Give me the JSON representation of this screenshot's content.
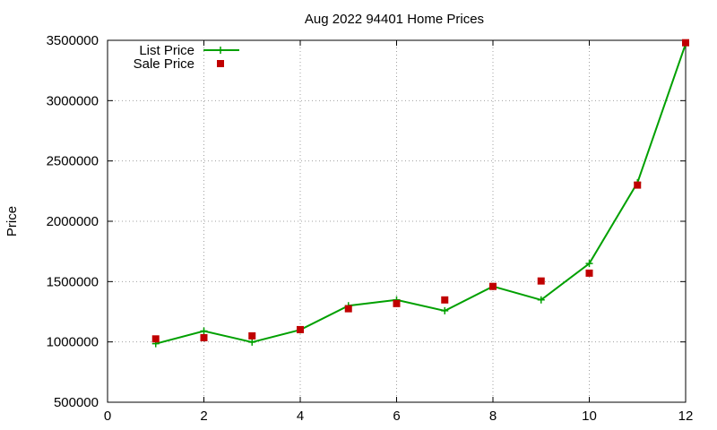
{
  "chart_data": {
    "type": "line",
    "title": "Aug 2022 94401 Home Prices",
    "xlabel": "",
    "ylabel": "Price",
    "xlim": [
      0,
      12
    ],
    "ylim": [
      500000,
      3500000
    ],
    "xticks": [
      0,
      2,
      4,
      6,
      8,
      10,
      12
    ],
    "yticks": [
      500000,
      1000000,
      1500000,
      2000000,
      2500000,
      3000000,
      3500000
    ],
    "grid": true,
    "legend_position": "top-left",
    "series": [
      {
        "name": "List Price",
        "style": "line-with-plus-markers",
        "color": "#00a000",
        "x": [
          1,
          2,
          3,
          4,
          5,
          6,
          7,
          8,
          9,
          10,
          11,
          12
        ],
        "y": [
          985000,
          1090000,
          998000,
          1100000,
          1300000,
          1348000,
          1258000,
          1460000,
          1348000,
          1650000,
          2320000,
          3470000
        ]
      },
      {
        "name": "Sale Price",
        "style": "square-markers",
        "color": "#c00000",
        "x": [
          1,
          2,
          3,
          4,
          5,
          6,
          7,
          8,
          9,
          10,
          11,
          12
        ],
        "y": [
          1025000,
          1035000,
          1050000,
          1102000,
          1275000,
          1318000,
          1348000,
          1460000,
          1505000,
          1570000,
          2300000,
          3480000
        ]
      }
    ]
  }
}
